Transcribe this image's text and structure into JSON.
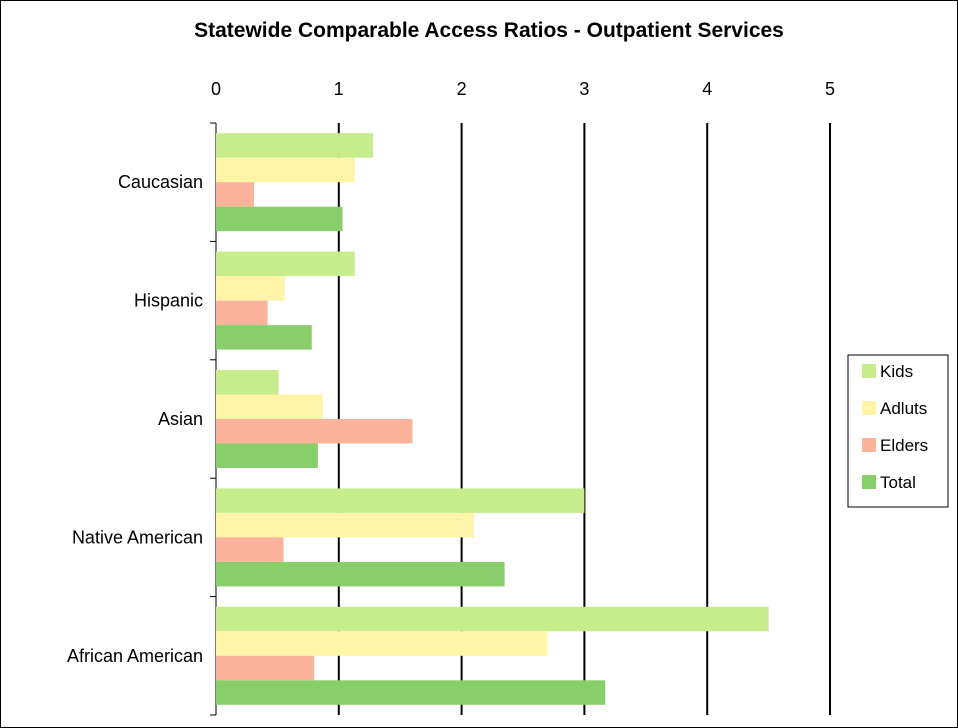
{
  "chart_data": {
    "type": "bar",
    "orientation": "horizontal",
    "title": "Statewide Comparable Access Ratios - Outpatient Services",
    "xlabel": "",
    "ylabel": "",
    "xlim": [
      0,
      5
    ],
    "xticks": [
      "0",
      "1",
      "2",
      "3",
      "4",
      "5"
    ],
    "x_axis_position": "top",
    "grid": true,
    "legend_position": "right",
    "categories": [
      "Caucasian",
      "Hispanic",
      "Asian",
      "Native American",
      "African American"
    ],
    "series": [
      {
        "name": "Kids",
        "color": "#c6ec8c",
        "values": [
          1.28,
          1.13,
          0.51,
          3.0,
          4.5
        ]
      },
      {
        "name": "Adluts",
        "color": "#fff4a8",
        "values": [
          1.13,
          0.56,
          0.87,
          2.1,
          2.7
        ]
      },
      {
        "name": "Elders",
        "color": "#fbb39c",
        "values": [
          0.31,
          0.42,
          1.6,
          0.55,
          0.8
        ]
      },
      {
        "name": "Total",
        "color": "#88cf6c",
        "values": [
          1.03,
          0.78,
          0.83,
          2.35,
          3.17
        ]
      }
    ]
  }
}
